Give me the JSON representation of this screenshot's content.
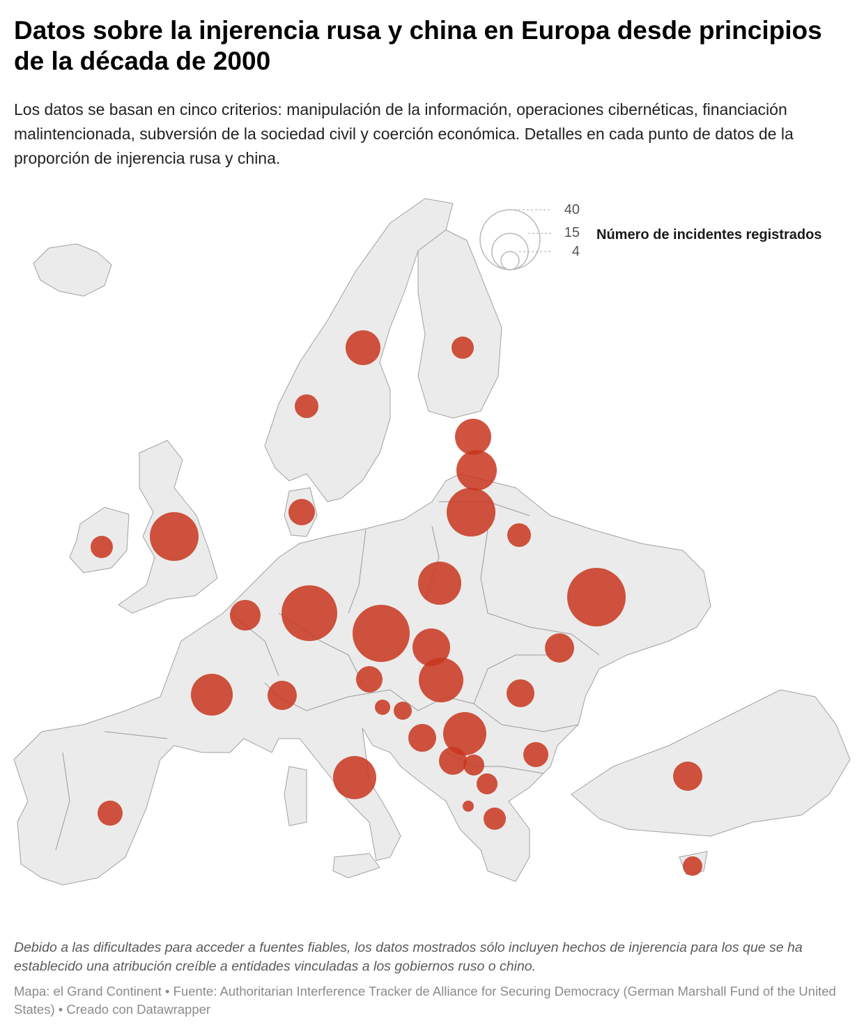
{
  "title": "Datos sobre la injerencia rusa y china en Europa desde principios de la década de 2000",
  "subtitle": "Los datos se basan en cinco criterios: manipulación de la información, operaciones cibernéticas, financiación malintencionada, subversión de la sociedad civil y coerción económica. Detalles en cada punto de datos de la proporción de injerencia rusa y china.",
  "legend": {
    "title": "Número de incidentes registrados",
    "values": [
      "40",
      "15",
      "4"
    ]
  },
  "notes": "Debido a las dificultades para acceder a fuentes fiables, los datos mostrados sólo incluyen hechos de injerencia para los que se ha establecido una atribución creíble a entidades vinculadas a los gobiernos ruso o chino.",
  "footer": {
    "map_credit": "Mapa: el Grand Continent",
    "separator": " • ",
    "source": "Fuente: Authoritarian Interference Tracker de Alliance for Securing Democracy (German Marshall Fund of the United States)",
    "created": "Creado con Datawrapper"
  },
  "colors": {
    "land": "#ebebeb",
    "border": "#9a9a9a",
    "bubble": "#c8361f",
    "legend_stroke": "#b8b8b8"
  }
}
